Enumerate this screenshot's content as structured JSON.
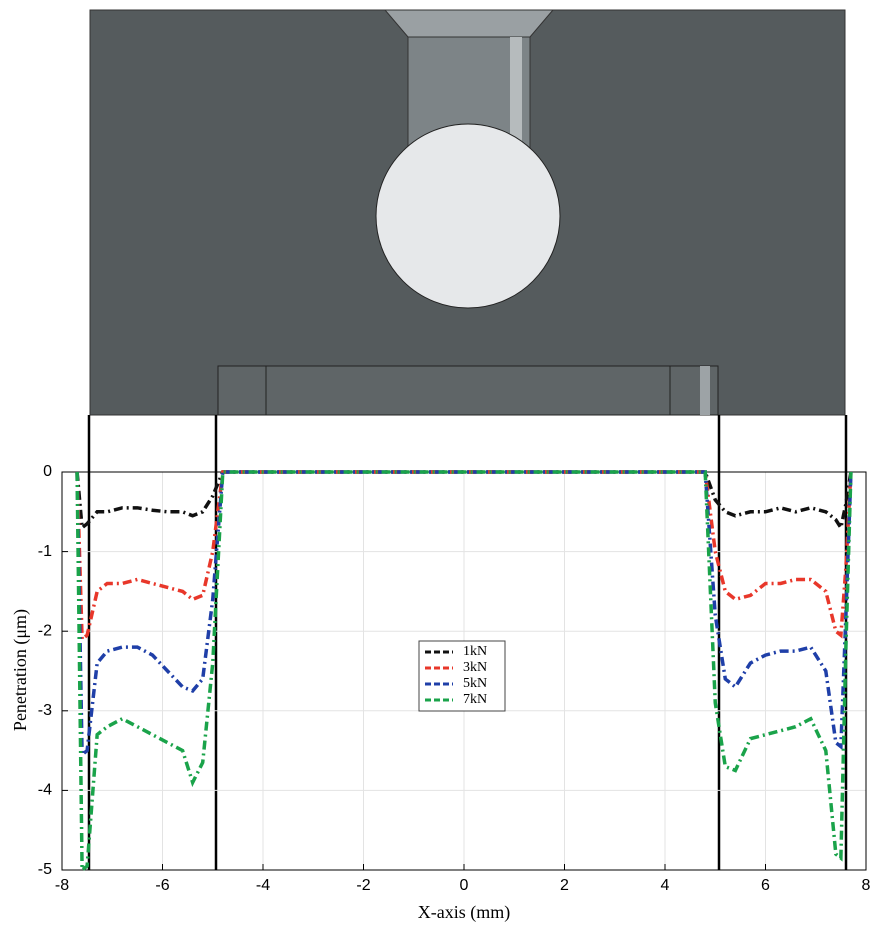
{
  "chart_data": {
    "type": "line",
    "xlabel": "X-axis (mm)",
    "ylabel": "Penetration (μm)",
    "xlim": [
      -8,
      8
    ],
    "ylim": [
      -5,
      0
    ],
    "xticks": [
      -8,
      -6,
      -4,
      -2,
      0,
      2,
      4,
      6,
      8
    ],
    "yticks": [
      -5,
      -4,
      -3,
      -2,
      -1,
      0
    ],
    "grid": true,
    "legend": "center",
    "x": [
      -7.7,
      -7.6,
      -7.5,
      -7.3,
      -7.1,
      -6.8,
      -6.5,
      -6.2,
      -5.9,
      -5.6,
      -5.4,
      -5.2,
      -5.0,
      -4.8,
      4.8,
      5.0,
      5.2,
      5.4,
      5.7,
      6.0,
      6.3,
      6.6,
      6.9,
      7.2,
      7.4,
      7.5,
      7.6,
      7.7
    ],
    "series": [
      {
        "name": "1kN",
        "color": "#111111",
        "values": [
          0,
          -0.7,
          -0.65,
          -0.5,
          -0.5,
          -0.45,
          -0.45,
          -0.48,
          -0.5,
          -0.5,
          -0.55,
          -0.5,
          -0.3,
          0,
          0,
          -0.35,
          -0.5,
          -0.55,
          -0.5,
          -0.5,
          -0.45,
          -0.5,
          -0.45,
          -0.5,
          -0.6,
          -0.7,
          -0.4,
          0
        ]
      },
      {
        "name": "3kN",
        "color": "#e8372a",
        "values": [
          0,
          -2.1,
          -2.05,
          -1.5,
          -1.4,
          -1.4,
          -1.35,
          -1.4,
          -1.45,
          -1.5,
          -1.6,
          -1.55,
          -1.0,
          0,
          0,
          -1.0,
          -1.5,
          -1.6,
          -1.55,
          -1.4,
          -1.4,
          -1.35,
          -1.35,
          -1.5,
          -2.0,
          -2.05,
          -1.2,
          0
        ]
      },
      {
        "name": "5kN",
        "color": "#1f3fa8",
        "values": [
          0,
          -3.55,
          -3.5,
          -2.4,
          -2.25,
          -2.2,
          -2.2,
          -2.3,
          -2.5,
          -2.7,
          -2.75,
          -2.6,
          -1.6,
          0,
          0,
          -1.8,
          -2.6,
          -2.7,
          -2.4,
          -2.3,
          -2.25,
          -2.25,
          -2.2,
          -2.5,
          -3.4,
          -3.45,
          -1.8,
          0
        ]
      },
      {
        "name": "7kN",
        "color": "#1aa34a",
        "values": [
          0,
          -5,
          -4.95,
          -3.3,
          -3.2,
          -3.1,
          -3.2,
          -3.3,
          -3.4,
          -3.5,
          -3.9,
          -3.65,
          -2.4,
          0,
          0,
          -2.9,
          -3.7,
          -3.75,
          -3.35,
          -3.3,
          -3.25,
          -3.2,
          -3.1,
          -3.5,
          -4.8,
          -4.85,
          -2.2,
          0
        ]
      }
    ]
  }
}
